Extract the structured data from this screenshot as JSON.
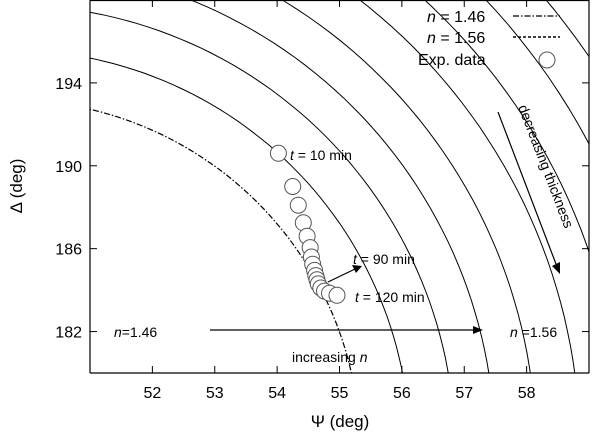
{
  "chart_data": {
    "type": "scatter",
    "xlabel": "Ψ (deg)",
    "ylabel": "Δ (deg)",
    "xlim": [
      51,
      59
    ],
    "ylim": [
      180,
      198
    ],
    "x_ticks": [
      52,
      53,
      54,
      55,
      56,
      57,
      58
    ],
    "y_ticks": [
      182,
      186,
      190,
      194
    ],
    "x_tick_labels": [
      "52",
      "53",
      "54",
      "55",
      "56",
      "57",
      "58"
    ],
    "y_tick_labels": [
      "182",
      "186",
      "190",
      "194"
    ],
    "grid": false,
    "legend_position": "top-right",
    "legend": [
      {
        "label_prefix": "n",
        "label_suffix": " = 1.46",
        "style": "dash-dot"
      },
      {
        "label_prefix": "n",
        "label_suffix": " = 1.56",
        "style": "dashed"
      },
      {
        "label_prefix": "",
        "label_suffix": "Exp. data",
        "style": "circle"
      }
    ],
    "series": [
      {
        "name": "Exp. data",
        "points": [
          {
            "x": 54.02,
            "y": 190.6
          },
          {
            "x": 54.25,
            "y": 189.0
          },
          {
            "x": 54.34,
            "y": 188.1
          },
          {
            "x": 54.42,
            "y": 187.25
          },
          {
            "x": 54.48,
            "y": 186.6
          },
          {
            "x": 54.53,
            "y": 186.05
          },
          {
            "x": 54.55,
            "y": 185.6
          },
          {
            "x": 54.57,
            "y": 185.25
          },
          {
            "x": 54.6,
            "y": 184.95
          },
          {
            "x": 54.62,
            "y": 184.7
          },
          {
            "x": 54.64,
            "y": 184.5
          },
          {
            "x": 54.66,
            "y": 184.3
          },
          {
            "x": 54.7,
            "y": 184.1
          },
          {
            "x": 54.76,
            "y": 183.95
          },
          {
            "x": 54.84,
            "y": 183.85
          },
          {
            "x": 54.96,
            "y": 183.75
          }
        ]
      }
    ],
    "annotations": {
      "t10": {
        "prefix": "t",
        "suffix": " = 10 min"
      },
      "t90": {
        "prefix": "t",
        "suffix": " = 90 min"
      },
      "t120": {
        "prefix": "t",
        "suffix": " = 120 min"
      },
      "n146": {
        "prefix": "n",
        "suffix": "=1.46"
      },
      "n156": {
        "prefix": "n",
        "suffix": " =1.56"
      },
      "increasing": {
        "prefix": "increasing ",
        "suffix": "n"
      },
      "decreasing": "decreasing thickness"
    }
  }
}
